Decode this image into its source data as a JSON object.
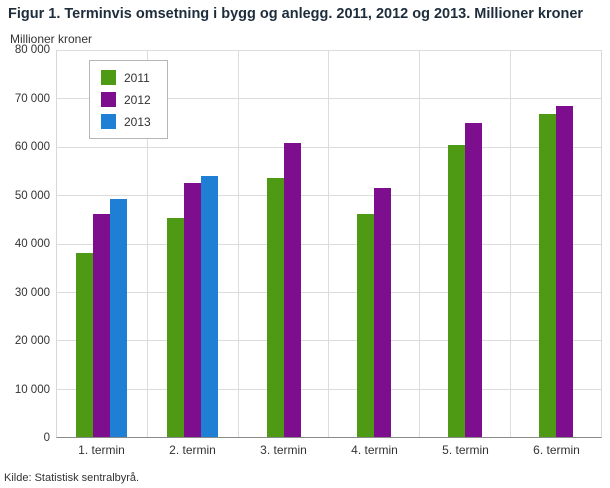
{
  "title": "Figur 1. Terminvis omsetning i bygg og anlegg. 2011, 2012 og 2013. Millioner kroner",
  "ylabel": "Millioner kroner",
  "source": "Kilde: Statistisk sentralbyrå.",
  "chart_data": {
    "type": "bar",
    "title": "Figur 1. Terminvis omsetning i bygg og anlegg. 2011, 2012 og 2013. Millioner kroner",
    "xlabel": "",
    "ylabel": "Millioner kroner",
    "categories": [
      "1. termin",
      "2. termin",
      "3. termin",
      "4. termin",
      "5. termin",
      "6. termin"
    ],
    "series": [
      {
        "name": "2011",
        "color": "#4e9a14",
        "values": [
          38000,
          45300,
          53500,
          46100,
          60400,
          66700
        ]
      },
      {
        "name": "2012",
        "color": "#7d0e8e",
        "values": [
          46200,
          52500,
          60700,
          51400,
          64900,
          68400
        ]
      },
      {
        "name": "2013",
        "color": "#1e7fd4",
        "values": [
          49200,
          53900,
          null,
          null,
          null,
          null
        ]
      }
    ],
    "ylim": [
      0,
      80000
    ],
    "ytick_step": 10000,
    "grid": true,
    "legend_position": "top-left"
  }
}
